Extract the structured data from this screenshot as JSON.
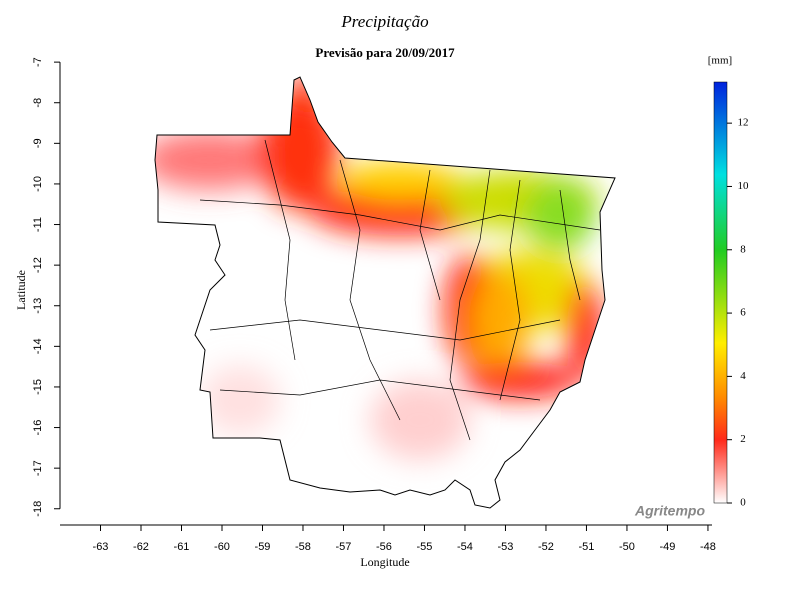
{
  "chart_data": {
    "type": "map",
    "title": "Precipitação",
    "subtitle": "Previsão para 20/09/2017",
    "xlabel": "Longitude",
    "ylabel": "Latitude",
    "xlim": [
      -64,
      -47.9
    ],
    "xticks": [
      -63,
      -62,
      -61,
      -60,
      -59,
      -58,
      -57,
      -56,
      -55,
      -54,
      -53,
      -52,
      -51,
      -50,
      -49,
      -48
    ],
    "ylim": [
      -18.4,
      -6.8
    ],
    "yticks": [
      -7,
      -8,
      -9,
      -10,
      -11,
      -12,
      -13,
      -14,
      -15,
      -16,
      -17,
      -18
    ],
    "colorbar": {
      "label": "[mm]",
      "lim": [
        0,
        13.3
      ],
      "ticks": [
        0,
        2,
        4,
        6,
        8,
        10,
        12
      ]
    },
    "watermark": "Agritempo"
  }
}
